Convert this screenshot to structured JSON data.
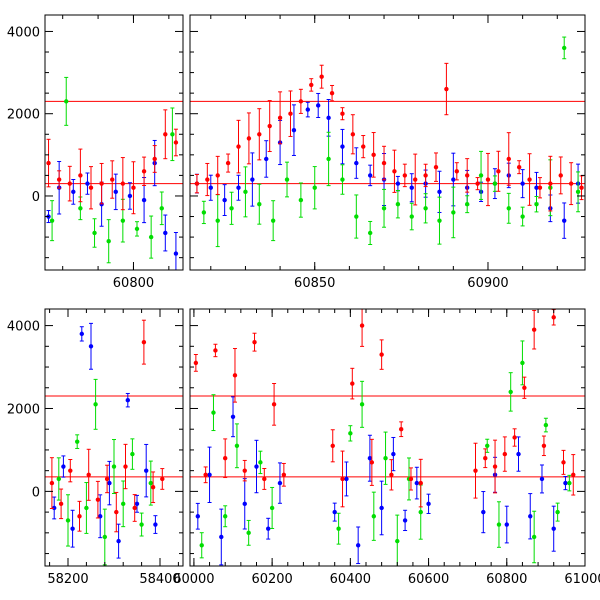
{
  "chart_data": [
    {
      "type": "scatter",
      "panel": "top-zoom",
      "title": "",
      "xlabel": "",
      "ylabel": "",
      "segments": [
        {
          "xlim": [
            60775,
            60814
          ]
        },
        {
          "xlim": [
            60814,
            60928
          ]
        }
      ],
      "ylim": [
        -1800,
        4400
      ],
      "x_ticks": [
        60800,
        60850,
        60900
      ],
      "y_ticks": [
        0,
        2000,
        4000
      ],
      "x_tick_labels": [
        "60800",
        "60850",
        "60900"
      ],
      "y_tick_labels": [
        "0",
        "2000",
        "4000"
      ],
      "reference_lines": [
        {
          "y": 2300,
          "color": "#ff0000"
        },
        {
          "y": 300,
          "color": "#ff0000"
        }
      ],
      "grid": false,
      "series": [
        {
          "color": "#0000ff",
          "x": [
            60776,
            60779,
            60783,
            60787,
            60791,
            60795,
            60799,
            60803,
            60806,
            60809,
            60812,
            60816,
            60820,
            60824,
            60828,
            60832,
            60836,
            60840,
            60844,
            60848,
            60851,
            60854,
            60858,
            60862,
            60866,
            60870,
            60874,
            60878,
            60882,
            60886,
            60890,
            60894,
            60898,
            60902,
            60906,
            60910,
            60914,
            60918,
            60922,
            60926
          ],
          "y": [
            -500,
            200,
            100,
            300,
            -200,
            100,
            0,
            -100,
            800,
            -900,
            -1400,
            300,
            200,
            -100,
            200,
            400,
            900,
            1300,
            1600,
            2100,
            2200,
            1900,
            1200,
            800,
            500,
            400,
            300,
            200,
            300,
            100,
            400,
            200,
            100,
            300,
            500,
            300,
            200,
            -300,
            -600,
            300
          ]
        },
        {
          "color": "#00dd00",
          "x": [
            60777,
            60781,
            60785,
            60789,
            60793,
            60797,
            60801,
            60805,
            60808,
            60811,
            60818,
            60822,
            60826,
            60830,
            60834,
            60838,
            60842,
            60846,
            60850,
            60854,
            60858,
            60862,
            60866,
            60870,
            60874,
            60878,
            60882,
            60886,
            60890,
            60894,
            60898,
            60902,
            60906,
            60910,
            60914,
            60918,
            60922,
            60926
          ],
          "y": [
            -600,
            2300,
            -300,
            -900,
            -1100,
            -600,
            -800,
            -1000,
            -300,
            1500,
            -400,
            -600,
            -300,
            100,
            -200,
            -600,
            400,
            -100,
            200,
            900,
            400,
            -500,
            -900,
            -300,
            -200,
            -500,
            -300,
            -600,
            -400,
            -200,
            500,
            300,
            -300,
            -500,
            -200,
            200,
            3600,
            100
          ]
        },
        {
          "color": "#ff0000",
          "x": [
            60776,
            60779,
            60782,
            60785,
            60788,
            60791,
            60794,
            60797,
            60800,
            60803,
            60806,
            60809,
            60812,
            60816,
            60819,
            60822,
            60825,
            60828,
            60831,
            60834,
            60837,
            60840,
            60843,
            60846,
            60849,
            60852,
            60855,
            60858,
            60861,
            60864,
            60867,
            60870,
            60873,
            60876,
            60879,
            60882,
            60885,
            60888,
            60891,
            60894,
            60897,
            60900,
            60903,
            60906,
            60909,
            60912,
            60915,
            60918,
            60921,
            60924,
            60927
          ],
          "y": [
            800,
            400,
            300,
            500,
            200,
            300,
            400,
            300,
            200,
            600,
            900,
            1500,
            1300,
            300,
            400,
            500,
            800,
            1200,
            1400,
            1500,
            1700,
            1900,
            2000,
            2300,
            2700,
            2900,
            2500,
            2000,
            1500,
            1200,
            1000,
            800,
            600,
            500,
            400,
            500,
            700,
            2600,
            600,
            500,
            300,
            400,
            600,
            900,
            700,
            400,
            200,
            300,
            500,
            300,
            200
          ]
        }
      ]
    },
    {
      "type": "scatter",
      "panel": "bottom-full",
      "title": "",
      "xlabel": "",
      "ylabel": "",
      "segments": [
        {
          "xlim": [
            58150,
            58450
          ]
        },
        {
          "xlim": [
            59990,
            61000
          ]
        }
      ],
      "ylim": [
        -1800,
        4400
      ],
      "x_ticks": [
        58200,
        58400,
        60000,
        60200,
        60400,
        60600,
        60800,
        61000
      ],
      "y_ticks": [
        0,
        2000,
        4000
      ],
      "x_tick_labels": [
        "58200",
        "58400",
        "60000",
        "60200",
        "60400",
        "60600",
        "60800",
        "61000"
      ],
      "y_tick_labels": [
        "0",
        "2000",
        "4000"
      ],
      "reference_lines": [
        {
          "y": 2300,
          "color": "#ff0000"
        },
        {
          "y": 350,
          "color": "#ff0000"
        }
      ],
      "grid": false,
      "series": [
        {
          "color": "#0000ff",
          "x": [
            58170,
            58190,
            58210,
            58230,
            58250,
            58270,
            58290,
            58310,
            58330,
            58350,
            58370,
            58390,
            60010,
            60040,
            60070,
            60100,
            60130,
            60160,
            60190,
            60220,
            60360,
            60390,
            60420,
            60450,
            60480,
            60510,
            60540,
            60570,
            60600,
            60740,
            60770,
            60800,
            60830,
            60860,
            60890,
            60920,
            60950
          ],
          "y": [
            -400,
            600,
            -900,
            3800,
            3500,
            -600,
            200,
            -1200,
            2200,
            -300,
            500,
            -800,
            -600,
            400,
            -1100,
            1800,
            -300,
            600,
            -900,
            200,
            -500,
            300,
            -1300,
            800,
            -400,
            900,
            -700,
            200,
            -300,
            -500,
            400,
            -800,
            900,
            -600,
            300,
            -900,
            200
          ]
        },
        {
          "color": "#00dd00",
          "x": [
            58180,
            58200,
            58220,
            58240,
            58260,
            58280,
            58300,
            58320,
            58340,
            58360,
            58380,
            60020,
            60050,
            60080,
            60110,
            60140,
            60170,
            60200,
            60370,
            60400,
            60430,
            60460,
            60490,
            60520,
            60550,
            60580,
            60750,
            60780,
            60810,
            60840,
            60870,
            60900,
            60930,
            60960
          ],
          "y": [
            300,
            -700,
            1200,
            -400,
            2100,
            -1100,
            600,
            -300,
            900,
            -800,
            200,
            -1300,
            1900,
            -600,
            1100,
            -1000,
            700,
            -400,
            -900,
            1400,
            2100,
            -600,
            800,
            -1200,
            300,
            -500,
            1100,
            -800,
            2400,
            3100,
            -1100,
            1600,
            -500,
            200
          ]
        },
        {
          "color": "#ff0000",
          "x": [
            58165,
            58185,
            58205,
            58225,
            58245,
            58265,
            58285,
            58305,
            58325,
            58345,
            58365,
            58385,
            58405,
            60005,
            60030,
            60055,
            60080,
            60105,
            60130,
            60155,
            60180,
            60205,
            60230,
            60355,
            60380,
            60405,
            60430,
            60455,
            60480,
            60505,
            60530,
            60555,
            60580,
            60720,
            60745,
            60770,
            60795,
            60820,
            60845,
            60870,
            60895,
            60920,
            60945,
            60970
          ],
          "y": [
            200,
            -300,
            500,
            -600,
            400,
            -200,
            300,
            -500,
            600,
            -400,
            3600,
            100,
            300,
            3100,
            400,
            3400,
            800,
            2800,
            500,
            3600,
            300,
            2100,
            400,
            1100,
            300,
            2600,
            4000,
            700,
            3300,
            400,
            1500,
            300,
            200,
            500,
            800,
            600,
            900,
            1300,
            2500,
            3900,
            1100,
            4200,
            700,
            400
          ]
        }
      ]
    }
  ]
}
